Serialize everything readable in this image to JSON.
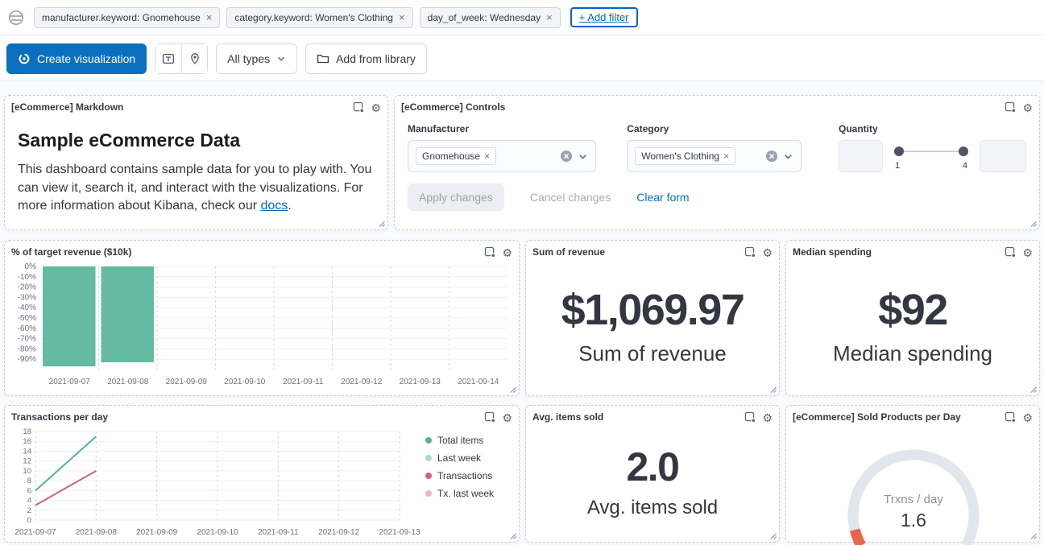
{
  "icons": {
    "gear": "⚙",
    "close": "×"
  },
  "filter_bar": {
    "filters": [
      {
        "label": "manufacturer.keyword: Gnomehouse"
      },
      {
        "label": "category.keyword: Women's Clothing"
      },
      {
        "label": "day_of_week: Wednesday"
      }
    ],
    "add_filter": "+ Add filter"
  },
  "toolbar": {
    "create_visualization": "Create visualization",
    "all_types": "All types",
    "add_from_library": "Add from library"
  },
  "markdown_panel": {
    "title": "[eCommerce] Markdown",
    "heading": "Sample eCommerce Data",
    "body_start": "This dashboard contains sample data for you to play with. You can view it, search it, and interact with the visualizations. For more information about Kibana, check our ",
    "link_text": "docs",
    "body_end": "."
  },
  "controls_panel": {
    "title": "[eCommerce] Controls",
    "manufacturer": {
      "label": "Manufacturer",
      "token": "Gnomehouse"
    },
    "category": {
      "label": "Category",
      "token": "Women's Clothing"
    },
    "quantity": {
      "label": "Quantity",
      "min": "1",
      "max": "4"
    },
    "apply_button": "Apply changes",
    "cancel_button": "Cancel changes",
    "clear_button": "Clear form"
  },
  "chart_data": [
    {
      "type": "bar",
      "title": "% of target revenue ($10k)",
      "categories": [
        "2021-09-07",
        "2021-09-08",
        "2021-09-09",
        "2021-09-10",
        "2021-09-11",
        "2021-09-12",
        "2021-09-13",
        "2021-09-14"
      ],
      "values": [
        -97,
        -93,
        null,
        null,
        null,
        null,
        null,
        null
      ],
      "yticks": [
        0,
        -10,
        -20,
        -30,
        -40,
        -50,
        -60,
        -70,
        -80,
        -90
      ],
      "ytick_labels": [
        "0%",
        "-10%",
        "-20%",
        "-30%",
        "-40%",
        "-50%",
        "-60%",
        "-70%",
        "-80%",
        "-90%"
      ],
      "ylim": [
        -100,
        0
      ],
      "bar_color": "#54B399",
      "grid": true,
      "legend": "none"
    },
    {
      "type": "line",
      "title": "Transactions per day",
      "x": [
        "2021-09-07",
        "2021-09-08",
        "2021-09-09",
        "2021-09-10",
        "2021-09-11",
        "2021-09-12",
        "2021-09-13"
      ],
      "yticks": [
        0,
        2,
        4,
        6,
        8,
        10,
        12,
        14,
        16,
        18
      ],
      "ylim": [
        0,
        18
      ],
      "legend_position": "right",
      "series": [
        {
          "name": "Total items",
          "color": "#54B399",
          "values": [
            6,
            17,
            null,
            null,
            null,
            null,
            null
          ]
        },
        {
          "name": "Last week",
          "color": "#A8DCCB",
          "values": [
            null,
            null,
            null,
            null,
            null,
            null,
            null
          ]
        },
        {
          "name": "Transactions",
          "color": "#D36086",
          "values": [
            3,
            10,
            null,
            null,
            null,
            null,
            null
          ]
        },
        {
          "name": "Tx. last week",
          "color": "#EFB3C9",
          "values": [
            null,
            null,
            null,
            null,
            null,
            null,
            null
          ]
        }
      ]
    },
    {
      "type": "gauge",
      "title": "[eCommerce] Sold Products per Day",
      "label": "Trxns / day",
      "value": 1.6,
      "value_display": "1.6",
      "min": 0,
      "max": 24,
      "track_color": "#E1E5ED",
      "value_color": "#E7664C"
    },
    {
      "type": "metric",
      "title": "Sum of revenue",
      "value_display": "$1,069.97",
      "label": "Sum of revenue"
    },
    {
      "type": "metric",
      "title": "Median spending",
      "value_display": "$92",
      "label": "Median spending"
    },
    {
      "type": "metric",
      "title": "Avg. items sold",
      "value_display": "2.0",
      "label": "Avg. items sold"
    }
  ]
}
